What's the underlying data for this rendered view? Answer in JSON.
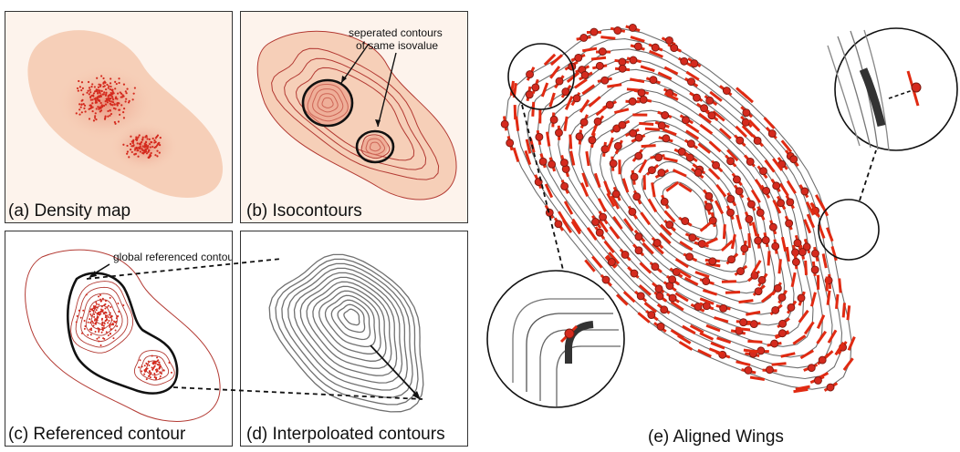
{
  "panels": {
    "a": {
      "caption": "(a) Density map"
    },
    "b": {
      "caption": "(b) Isocontours",
      "annotation_line1": "seperated contours",
      "annotation_line2": "of same isovalue"
    },
    "c": {
      "caption": "(c) Referenced contour",
      "annotation": "global referenced contour"
    },
    "d": {
      "caption": "(d) Interpoloated contours"
    },
    "e": {
      "caption": "(e) Aligned Wings"
    }
  },
  "colors": {
    "density_fill": "#f6cfb8",
    "density_core": "#e8907a",
    "point": "#d42a1e",
    "wing": "#e02a12",
    "contour_red": "#b33a33",
    "contour_gray": "#707070",
    "reference": "#111111"
  }
}
